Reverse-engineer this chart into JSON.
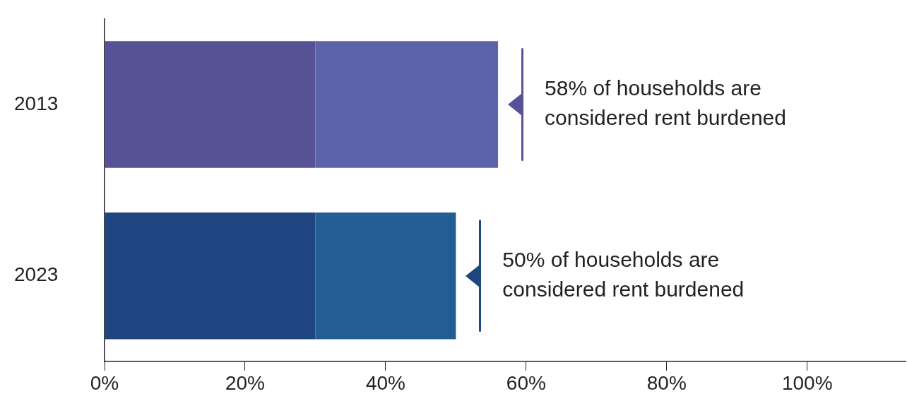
{
  "chart_data": {
    "type": "bar",
    "orientation": "horizontal",
    "stacked": true,
    "categories": [
      "2013",
      "2023"
    ],
    "series": [
      {
        "colors": [
          "#575195",
          "#1f4580"
        ],
        "values": [
          30,
          30
        ]
      },
      {
        "colors": [
          "#5d63ab",
          "#225e93"
        ],
        "values": [
          26,
          20
        ]
      }
    ],
    "xlim": [
      0,
      114
    ],
    "xticks": [
      {
        "value": 0,
        "label": "0%"
      },
      {
        "value": 20,
        "label": "20%"
      },
      {
        "value": 40,
        "label": "40%"
      },
      {
        "value": 60,
        "label": "60%"
      },
      {
        "value": 80,
        "label": "80%"
      },
      {
        "value": 100,
        "label": "100%"
      }
    ],
    "grid": false,
    "legend": false,
    "annotations": [
      "58% of households are considered rent burdened",
      "50% of households are considered rent burdened"
    ]
  }
}
